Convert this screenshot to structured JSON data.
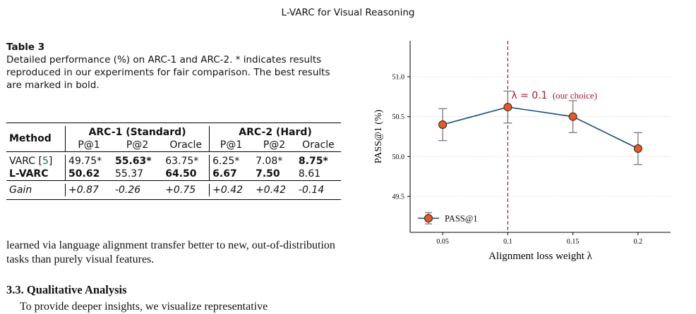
{
  "header": {
    "running_title": "L-VARC for Visual Reasoning"
  },
  "table": {
    "caption_title": "Table 3",
    "caption_text": "Detailed performance (%) on ARC-1 and ARC-2. * indicates results reproduced in our experiments for fair comparison. The best results are marked in bold.",
    "method_header": "Method",
    "group_1": "ARC-1 (Standard)",
    "group_2": "ARC-2 (Hard)",
    "sub_headers": [
      "P@1",
      "P@2",
      "Oracle",
      "P@1",
      "P@2",
      "Oracle"
    ],
    "rows": [
      {
        "method": "VARC",
        "cite": "5",
        "values": [
          "49.75*",
          "55.63*",
          "63.75*",
          "6.25*",
          "7.08*",
          "8.75*"
        ]
      },
      {
        "method": "L-VARC",
        "values": [
          "50.62",
          "55.37",
          "64.50",
          "6.67",
          "7.50",
          "8.61"
        ]
      },
      {
        "method": "Gain",
        "values": [
          "+0.87",
          "-0.26",
          "+0.75",
          "+0.42",
          "+0.42",
          "-0.14"
        ]
      }
    ]
  },
  "body": {
    "paragraph_1": "learned via language alignment transfer better to new, out-of-distribution tasks than purely visual features.",
    "section_heading": "3.3. Qualitative Analysis",
    "paragraph_2": "To provide deeper insights, we visualize representative"
  },
  "chart_data": {
    "type": "line",
    "x": [
      0.05,
      0.1,
      0.15,
      0.2
    ],
    "x_tick_labels": [
      "0.05",
      "0.1",
      "0.15",
      "0.2"
    ],
    "series": [
      {
        "name": "PASS@1",
        "values": [
          50.4,
          50.62,
          50.5,
          50.1
        ],
        "error": [
          0.2,
          0.2,
          0.2,
          0.2
        ]
      }
    ],
    "xlabel": "Alignment loss weight λ",
    "ylabel": "PASS@1 (%)",
    "y_ticks": [
      49.5,
      50.0,
      50.5,
      51.0
    ],
    "y_tick_labels": [
      "49.5",
      "50.0",
      "50.5",
      "51.0"
    ],
    "xlim": [
      0.025,
      0.225
    ],
    "ylim": [
      49.05,
      51.45
    ],
    "grid": "horizontal dotted",
    "legend_position": "bottom-left",
    "annotation": {
      "x": 0.1,
      "math": "λ = 0.1",
      "note": "(our choice)"
    },
    "colors": {
      "line": "#1f4e79",
      "marker": "#e05a2b",
      "marker_edge": "#3a2015",
      "error_bar": "#808080",
      "annotation": "#a51c30"
    }
  }
}
